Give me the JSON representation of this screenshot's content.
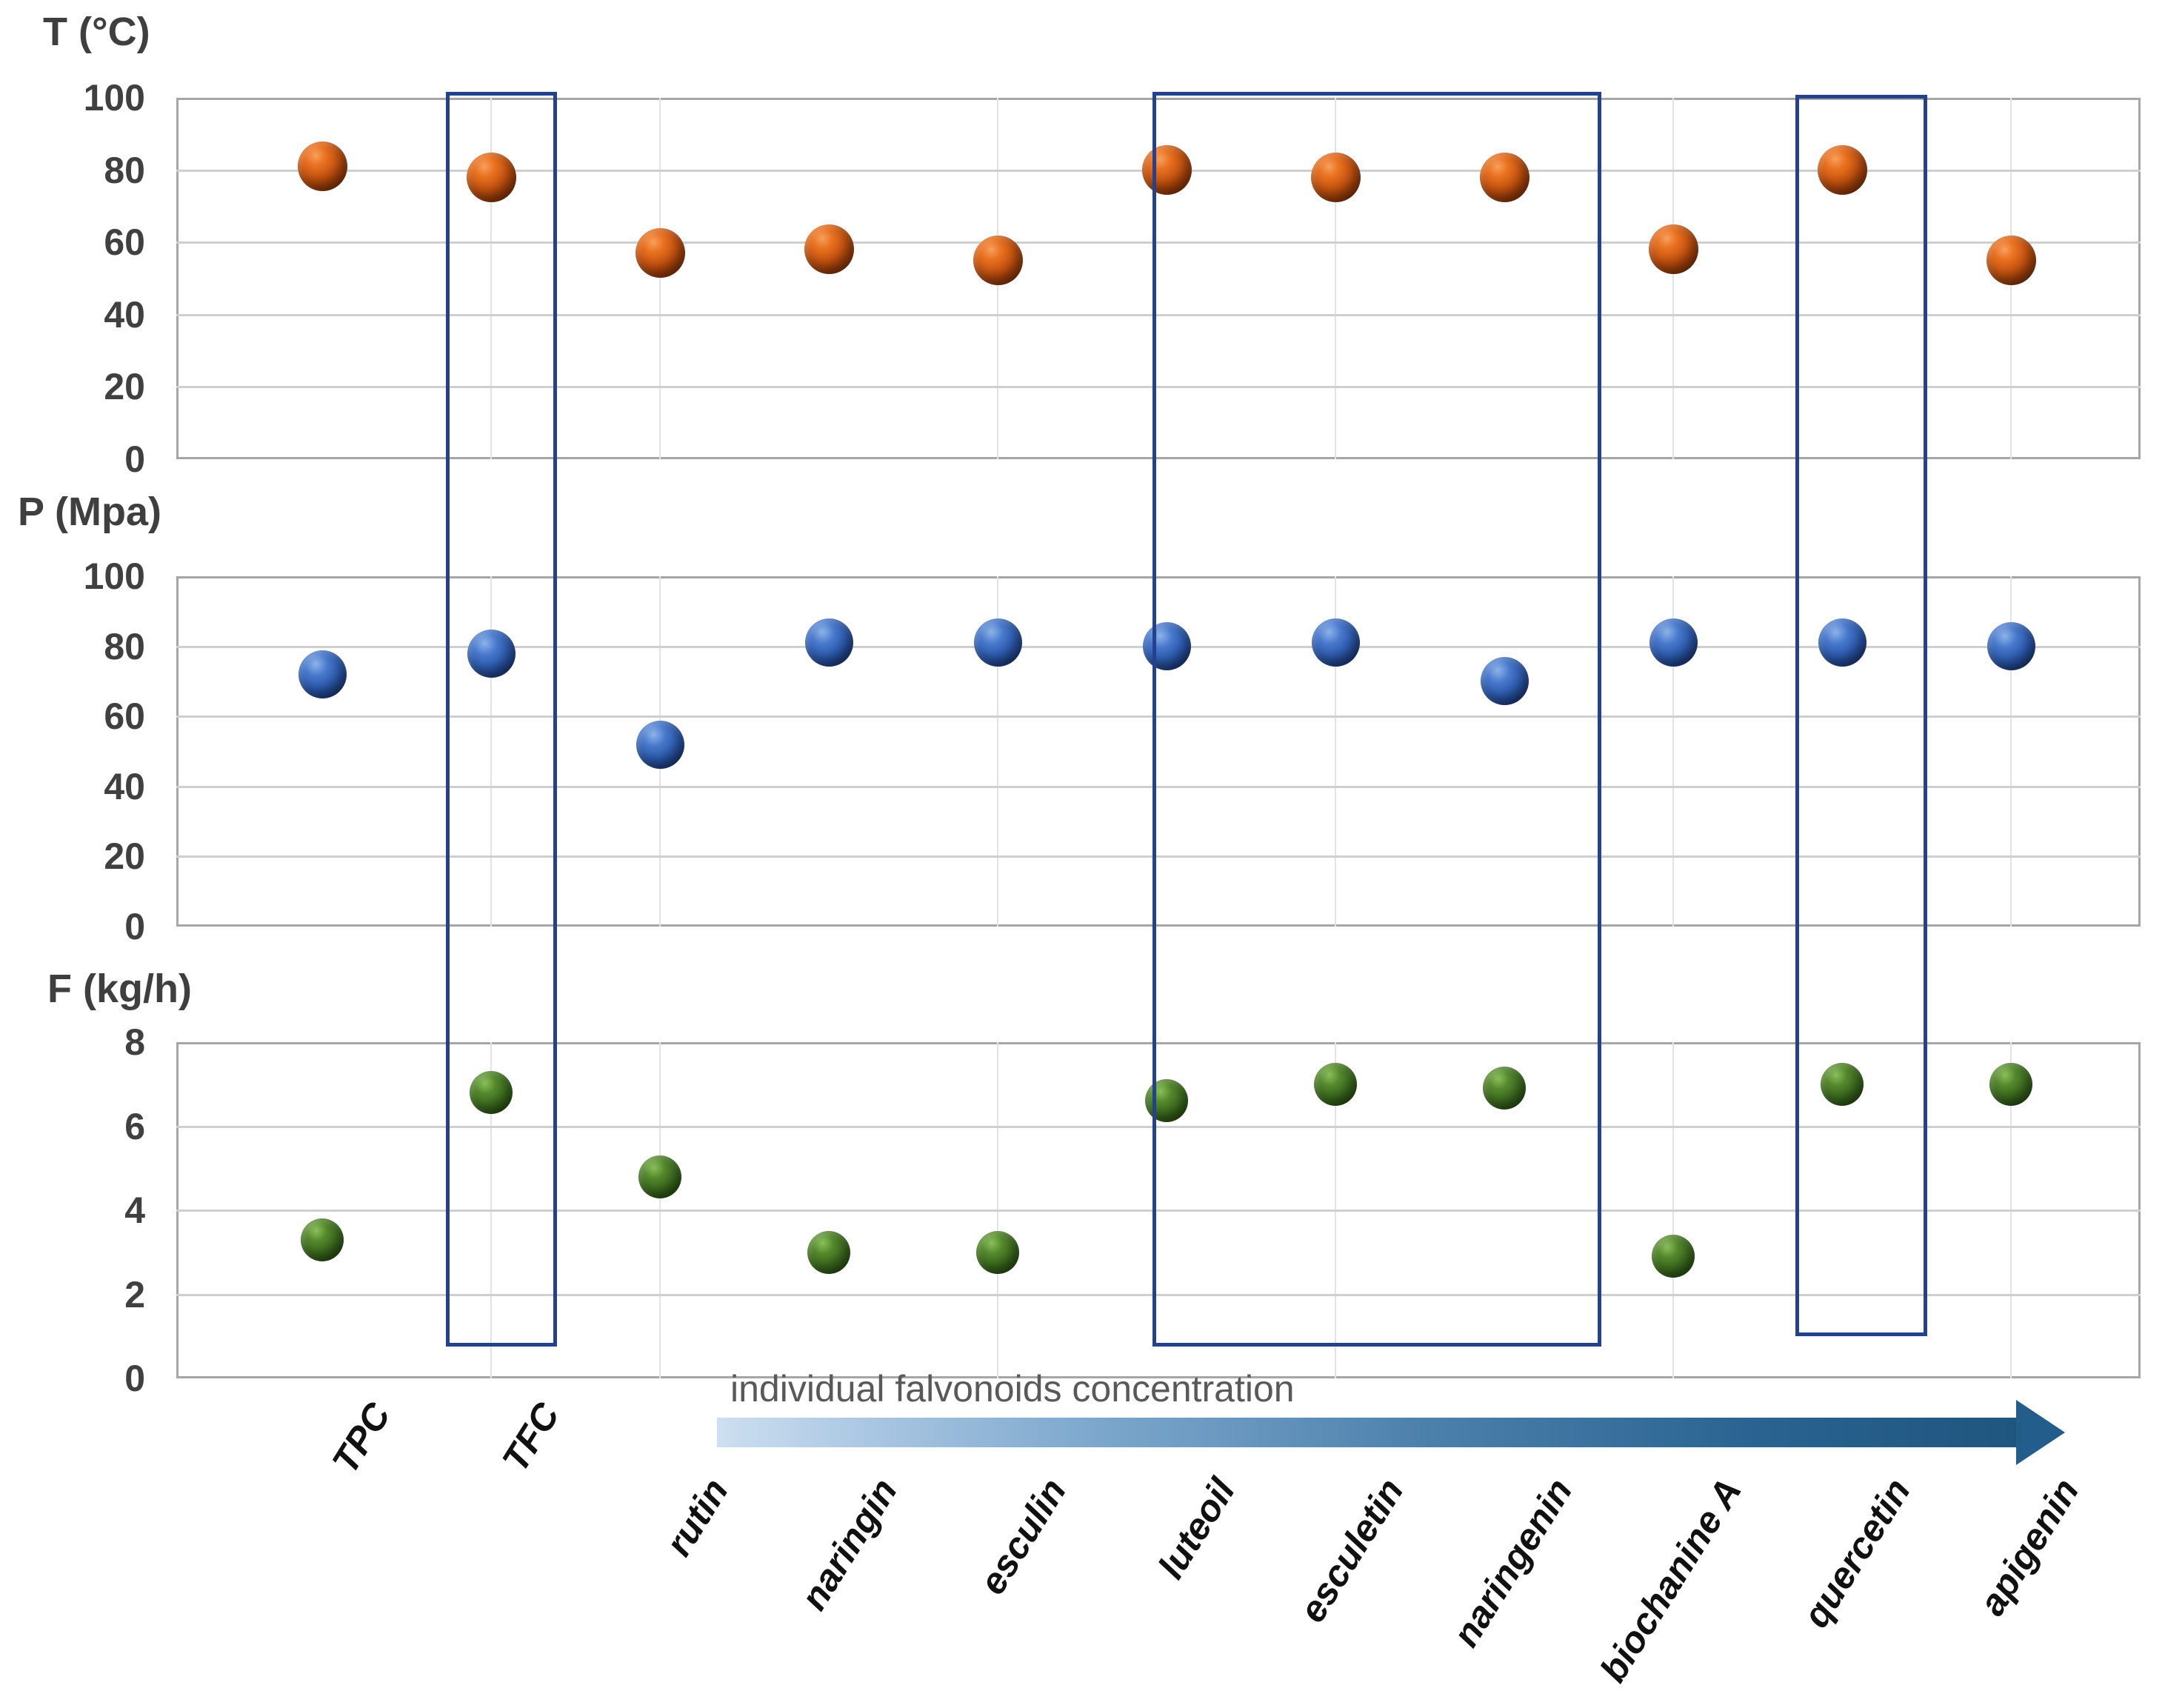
{
  "chart_data": {
    "type": "scatter",
    "title": "",
    "categories": [
      "TPC",
      "TFC",
      "rutin",
      "naringin",
      "esculin",
      "luteoil",
      "esculetin",
      "naringenin",
      "biochanine A",
      "quercetin",
      "apigenin"
    ],
    "panels": [
      {
        "id": "T",
        "title": "T (°C)",
        "ylim": [
          0,
          100
        ],
        "yticks": [
          0,
          20,
          40,
          60,
          80,
          100
        ],
        "marker_color": "orange",
        "values": [
          81,
          78,
          57,
          58,
          55,
          80,
          78,
          78,
          58,
          80,
          55
        ]
      },
      {
        "id": "P",
        "title": "P (Mpa)",
        "ylim": [
          0,
          100
        ],
        "yticks": [
          0,
          20,
          40,
          60,
          80,
          100
        ],
        "marker_color": "blue",
        "values": [
          72,
          78,
          52,
          81,
          81,
          80,
          81,
          70,
          81,
          81,
          80
        ]
      },
      {
        "id": "F",
        "title": "F (kg/h)",
        "ylim": [
          0,
          8
        ],
        "yticks": [
          0,
          2,
          4,
          6,
          8
        ],
        "marker_color": "green",
        "values": [
          3.3,
          6.8,
          4.8,
          3,
          3,
          6.6,
          7,
          6.9,
          2.9,
          7,
          7
        ]
      }
    ],
    "highlight_boxes": [
      {
        "categories": [
          "TFC"
        ]
      },
      {
        "categories": [
          "luteoil",
          "esculetin",
          "naringenin"
        ]
      },
      {
        "categories": [
          "quercetin"
        ]
      }
    ],
    "vertical_guides": [
      "TFC",
      "rutin",
      "esculin",
      "esculetin",
      "biochanine A",
      "apigenin"
    ],
    "annotation": {
      "arrow_label": "individual falvonoids concentration",
      "arrow_direction": "right"
    },
    "layout_hints": {
      "grid": true,
      "legend": "none",
      "x_labels_rotated_deg": 58
    },
    "colors": {
      "orange_marker": "#c2500e",
      "blue_marker": "#2c5cb2",
      "green_marker": "#3e7020",
      "highlight_box_stroke": "#24418c",
      "arrow_gradient_start": "#cddff0",
      "arrow_gradient_end": "#1f567f",
      "grid_line": "#cfcfcf",
      "axis_text": "#404040",
      "arrow_text": "#595959"
    }
  }
}
